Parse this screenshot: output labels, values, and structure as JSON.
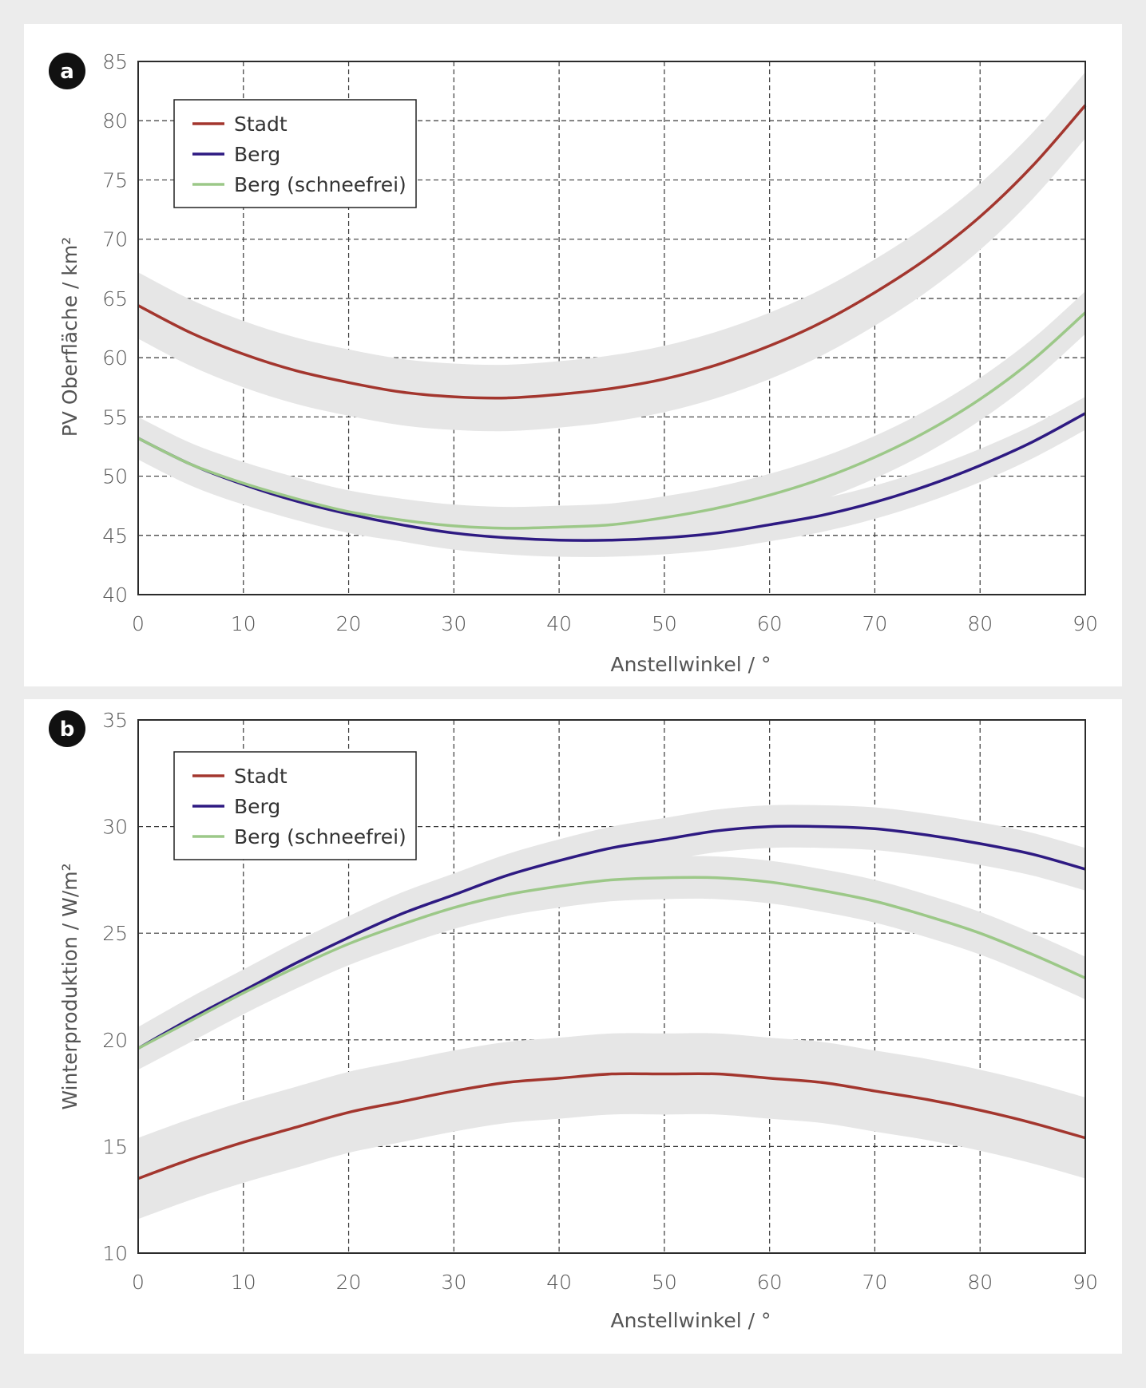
{
  "chart_data": [
    {
      "panel": "a",
      "type": "line",
      "xlabel": "Anstellwinkel / °",
      "ylabel": "PV Oberfläche / km²",
      "xlim": [
        0,
        90
      ],
      "ylim": [
        40,
        85
      ],
      "xticks": [
        "0",
        "10",
        "20",
        "30",
        "40",
        "50",
        "60",
        "70",
        "80",
        "90"
      ],
      "yticks": [
        "40",
        "45",
        "50",
        "55",
        "60",
        "65",
        "70",
        "75",
        "80",
        "85"
      ],
      "grid": true,
      "legend_position": "top-left",
      "x": [
        0,
        5,
        10,
        15,
        20,
        25,
        30,
        35,
        40,
        45,
        50,
        55,
        60,
        65,
        70,
        75,
        80,
        85,
        90
      ],
      "series": [
        {
          "name": "Stadt",
          "color": "#a3362e",
          "band": 2.8,
          "values": [
            64.4,
            62.1,
            60.3,
            58.9,
            57.9,
            57.1,
            56.7,
            56.6,
            56.9,
            57.4,
            58.2,
            59.4,
            61.0,
            63.0,
            65.5,
            68.4,
            71.9,
            76.2,
            81.3
          ]
        },
        {
          "name": "Berg",
          "color": "#2e1a82",
          "band": 1.4,
          "values": [
            53.2,
            51.0,
            49.3,
            47.9,
            46.8,
            45.9,
            45.2,
            44.8,
            44.6,
            44.6,
            44.8,
            45.2,
            45.9,
            46.7,
            47.8,
            49.2,
            50.9,
            52.9,
            55.3
          ]
        },
        {
          "name": "Berg (schneefrei)",
          "color": "#9cc888",
          "band": 1.8,
          "values": [
            53.2,
            51.0,
            49.4,
            48.1,
            47.0,
            46.3,
            45.8,
            45.6,
            45.7,
            45.9,
            46.5,
            47.3,
            48.4,
            49.8,
            51.6,
            53.8,
            56.5,
            59.8,
            63.8
          ]
        }
      ]
    },
    {
      "panel": "b",
      "type": "line",
      "xlabel": "Anstellwinkel / °",
      "ylabel": "Winterproduktion / W/m²",
      "xlim": [
        0,
        90
      ],
      "ylim": [
        10,
        35
      ],
      "xticks": [
        "0",
        "10",
        "20",
        "30",
        "40",
        "50",
        "60",
        "70",
        "80",
        "90"
      ],
      "yticks": [
        "10",
        "15",
        "20",
        "25",
        "30",
        "35"
      ],
      "grid": true,
      "legend_position": "top-left",
      "x": [
        0,
        5,
        10,
        15,
        20,
        25,
        30,
        35,
        40,
        45,
        50,
        55,
        60,
        65,
        70,
        75,
        80,
        85,
        90
      ],
      "series": [
        {
          "name": "Stadt",
          "color": "#a3362e",
          "band": 1.9,
          "values": [
            13.5,
            14.4,
            15.2,
            15.9,
            16.6,
            17.1,
            17.6,
            18.0,
            18.2,
            18.4,
            18.4,
            18.4,
            18.2,
            18.0,
            17.6,
            17.2,
            16.7,
            16.1,
            15.4
          ]
        },
        {
          "name": "Berg",
          "color": "#2e1a82",
          "band": 1.0,
          "values": [
            19.6,
            21.0,
            22.3,
            23.6,
            24.8,
            25.9,
            26.8,
            27.7,
            28.4,
            29.0,
            29.4,
            29.8,
            30.0,
            30.0,
            29.9,
            29.6,
            29.2,
            28.7,
            28.0
          ]
        },
        {
          "name": "Berg (schneefrei)",
          "color": "#9cc888",
          "band": 1.0,
          "values": [
            19.6,
            20.9,
            22.2,
            23.4,
            24.5,
            25.4,
            26.2,
            26.8,
            27.2,
            27.5,
            27.6,
            27.6,
            27.4,
            27.0,
            26.5,
            25.8,
            25.0,
            24.0,
            22.9
          ]
        }
      ]
    }
  ]
}
